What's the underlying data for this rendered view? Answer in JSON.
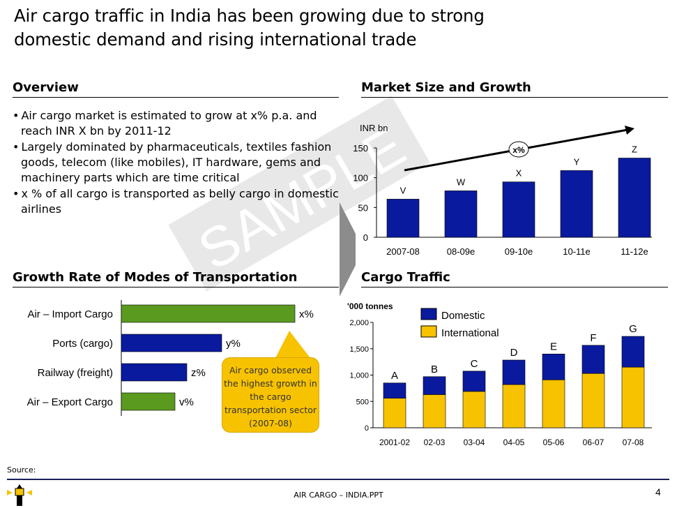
{
  "title": "Air cargo traffic in India has been growing due to strong domestic demand and rising international trade",
  "title_lines": [
    "Air cargo traffic in India has been growing due to strong",
    "domestic demand and rising international trade"
  ],
  "watermark": "SAMPLE",
  "overview": {
    "heading": "Overview",
    "bullets": [
      "Air cargo market is estimated to grow at x% p.a. and reach INR X bn by 2011-12",
      "Largely dominated by pharmaceuticals, textiles fashion goods, telecom (like mobiles), IT hardware, gems and machinery parts which are time critical",
      "x % of all cargo is transported as belly cargo in domestic airlines"
    ]
  },
  "growth": {
    "heading": "Growth Rate of Modes of Transportation",
    "callout": "Air  cargo observed the highest growth in the cargo transportation sector (2007-08)"
  },
  "market": {
    "heading": "Market Size and Growth"
  },
  "cargo": {
    "heading": "Cargo Traffic"
  },
  "colors": {
    "blue": "#0a1a9e",
    "green": "#5a9a1f",
    "yellow": "#f7c200",
    "navy": "#1a1f5c"
  },
  "chart_data": [
    {
      "type": "bar",
      "orientation": "horizontal",
      "categories": [
        "Air – Import Cargo",
        "Ports (cargo)",
        "Railway (freight)",
        "Air – Export Cargo"
      ],
      "values": [
        249,
        144,
        94,
        77
      ],
      "data_labels": [
        "x%",
        "y%",
        "z%",
        "v%"
      ],
      "colors": [
        "#5a9a1f",
        "#0a1a9e",
        "#0a1a9e",
        "#5a9a1f"
      ],
      "value_units": "relative (no axis shown)"
    },
    {
      "type": "bar",
      "ylabel": "INR bn",
      "categories": [
        "2007-08",
        "08-09e",
        "09-10e",
        "10-11e",
        "11-12e"
      ],
      "values": [
        64,
        78,
        93,
        112,
        133
      ],
      "data_labels": [
        "V",
        "W",
        "X",
        "Y",
        "Z"
      ],
      "ylim": [
        0,
        150
      ],
      "yticks": [
        0,
        50,
        100,
        150
      ],
      "annotation": "x%"
    },
    {
      "type": "bar",
      "stacked": true,
      "ylabel": "'000 tonnes",
      "categories": [
        "2001-02",
        "02-03",
        "03-04",
        "04-05",
        "05-06",
        "06-07",
        "07-08"
      ],
      "series": [
        {
          "name": "International",
          "values": [
            560,
            630,
            690,
            820,
            910,
            1030,
            1150
          ]
        },
        {
          "name": "Domestic",
          "values": [
            290,
            340,
            385,
            465,
            490,
            535,
            585
          ]
        }
      ],
      "data_labels": [
        "A",
        "B",
        "C",
        "D",
        "E",
        "F",
        "G"
      ],
      "ylim": [
        0,
        2000
      ],
      "yticks": [
        "0",
        "500",
        "1,000",
        "1,500",
        "2,000"
      ],
      "legend": "top-left"
    }
  ],
  "footer": {
    "source": "Source:",
    "file": "AIR CARGO – INDIA.PPT",
    "page": "4"
  }
}
